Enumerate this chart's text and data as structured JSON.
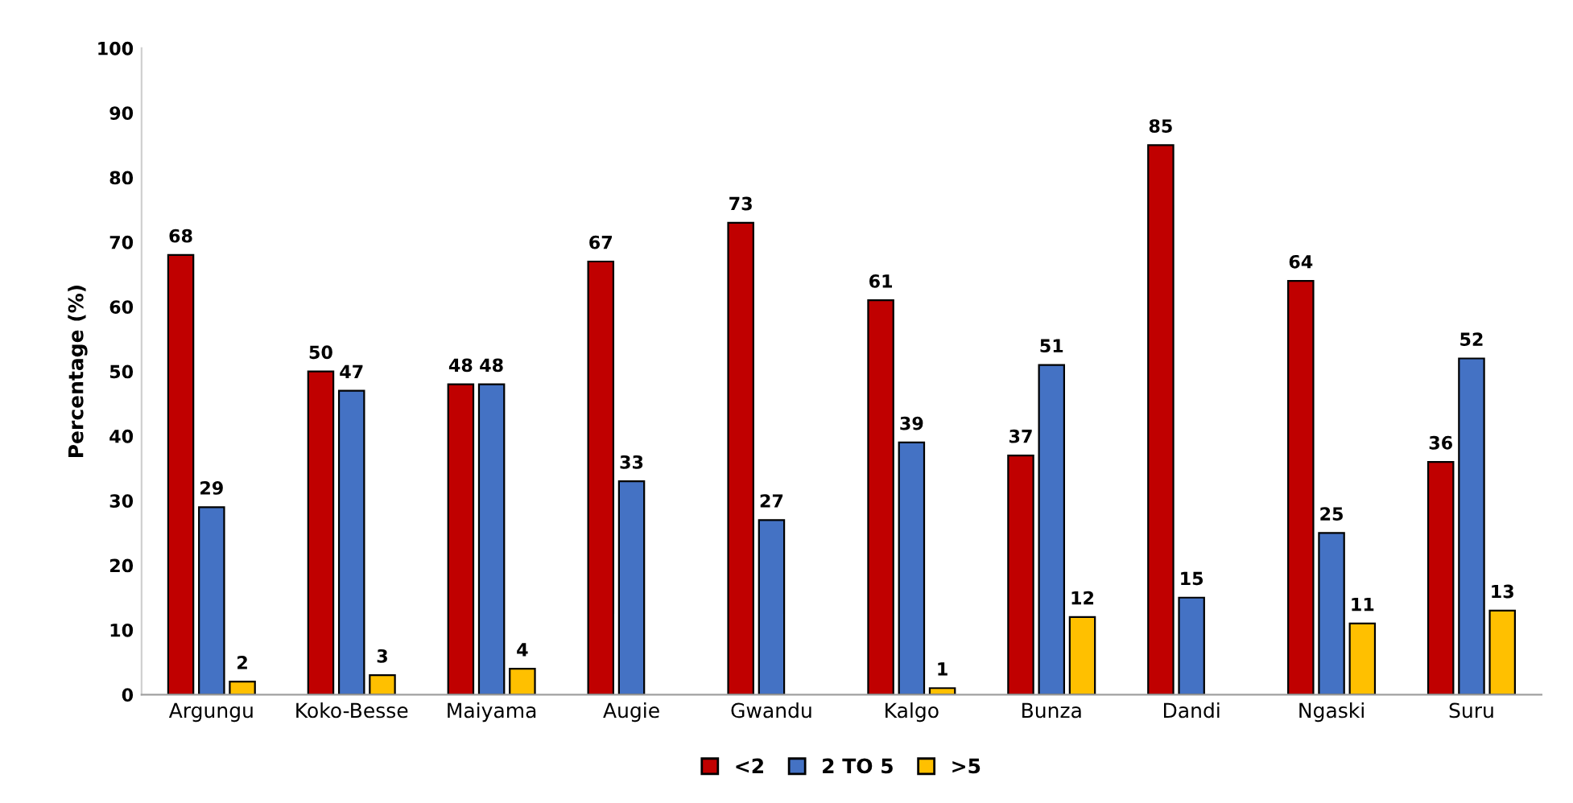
{
  "chart_data": {
    "type": "bar",
    "ylabel": "Percentage (%)",
    "categories": [
      "Argungu",
      "Koko-Besse",
      "Maiyama",
      "Augie",
      "Gwandu",
      "Kalgo",
      "Bunza",
      "Dandi",
      "Ngaski",
      "Suru"
    ],
    "series": [
      {
        "name": "<2",
        "color": "#c00000",
        "values": [
          68,
          50,
          48,
          67,
          73,
          61,
          37,
          85,
          64,
          36
        ]
      },
      {
        "name": "2 TO 5",
        "color": "#4472c4",
        "values": [
          29,
          47,
          48,
          33,
          27,
          39,
          51,
          15,
          25,
          52
        ]
      },
      {
        "name": ">5",
        "color": "#ffc000",
        "values": [
          2,
          3,
          4,
          null,
          null,
          1,
          12,
          null,
          11,
          13
        ]
      }
    ],
    "ylim": [
      0,
      100
    ],
    "yticks": [
      0,
      10,
      20,
      30,
      40,
      50,
      60,
      70,
      80,
      90,
      100
    ],
    "data_labels": true,
    "grid": false,
    "legend": "bottom"
  }
}
